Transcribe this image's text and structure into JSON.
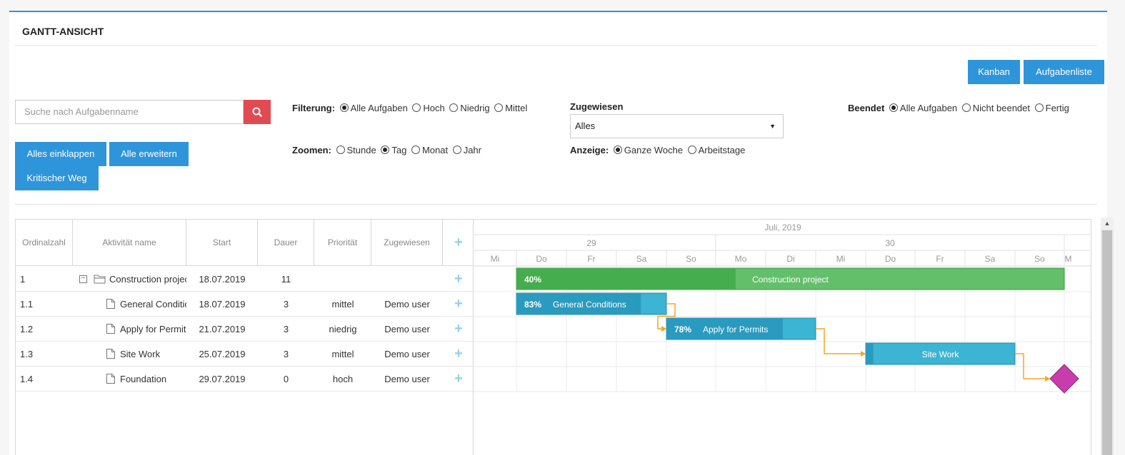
{
  "header": {
    "title": "GANTT-ANSICHT"
  },
  "view_buttons": {
    "kanban": "Kanban",
    "task_list": "Aufgabenliste"
  },
  "search": {
    "placeholder": "Suche nach Aufgabenname"
  },
  "actions": {
    "collapse_all": "Alles einklappen",
    "expand_all": "Alle erweitern",
    "critical_path": "Kritischer Weg"
  },
  "filtering": {
    "label": "Filterung:",
    "options": [
      "Alle Aufgaben",
      "Hoch",
      "Niedrig",
      "Mittel"
    ],
    "selected": "Alle Aufgaben"
  },
  "zoom": {
    "label": "Zoomen:",
    "options": [
      "Stunde",
      "Tag",
      "Monat",
      "Jahr"
    ],
    "selected": "Tag"
  },
  "assigned": {
    "label": "Zugewiesen",
    "value": "Alles"
  },
  "display": {
    "label": "Anzeige:",
    "options": [
      "Ganze Woche",
      "Arbeitstage"
    ],
    "selected": "Ganze Woche"
  },
  "finished": {
    "label": "Beendet",
    "options": [
      "Alle Aufgaben",
      "Nicht beendet",
      "Fertig"
    ],
    "selected": "Alle Aufgaben"
  },
  "grid": {
    "columns": [
      "Ordinalzahl",
      "Aktivität name",
      "Start",
      "Dauer",
      "Priorität",
      "Zugewiesen"
    ],
    "rows": [
      {
        "ordinal": "1",
        "name": "Construction project",
        "start": "18.07.2019",
        "duration": "11",
        "priority": "",
        "assigned": "",
        "type": "folder"
      },
      {
        "ordinal": "1.1",
        "name": "General Conditions",
        "start": "18.07.2019",
        "duration": "3",
        "priority": "mittel",
        "assigned": "Demo user",
        "type": "file"
      },
      {
        "ordinal": "1.2",
        "name": "Apply for Permits",
        "start": "21.07.2019",
        "duration": "3",
        "priority": "niedrig",
        "assigned": "Demo user",
        "type": "file"
      },
      {
        "ordinal": "1.3",
        "name": "Site Work",
        "start": "25.07.2019",
        "duration": "3",
        "priority": "mittel",
        "assigned": "Demo user",
        "type": "file"
      },
      {
        "ordinal": "1.4",
        "name": "Foundation",
        "start": "29.07.2019",
        "duration": "0",
        "priority": "hoch",
        "assigned": "Demo user",
        "type": "file"
      }
    ]
  },
  "timeline": {
    "month": "Juli, 2019",
    "weeks": [
      "29",
      "30"
    ],
    "days": [
      "Mi",
      "Do",
      "Fr",
      "Sa",
      "So",
      "Mo",
      "Di",
      "Mi",
      "Do",
      "Fr",
      "Sa",
      "So",
      "M"
    ]
  },
  "bars": [
    {
      "name": "Construction project",
      "progress_label": "40%",
      "progress": 0.4,
      "start_day": 1,
      "duration_days": 11,
      "color": "#63bf6a",
      "progress_color": "#45ad4e"
    },
    {
      "name": "General Conditions",
      "progress_label": "83%",
      "progress": 0.83,
      "start_day": 1,
      "duration_days": 3,
      "color": "#3cb4d3",
      "progress_color": "#2a9abf"
    },
    {
      "name": "Apply for Permits",
      "progress_label": "78%",
      "progress": 0.78,
      "start_day": 4,
      "duration_days": 3,
      "color": "#3cb4d3",
      "progress_color": "#2a9abf"
    },
    {
      "name": "Site Work",
      "progress_label": "",
      "progress": 0.05,
      "start_day": 8,
      "duration_days": 3,
      "color": "#3cb4d3",
      "progress_color": "#2a9abf"
    },
    {
      "name": "",
      "progress_label": "",
      "progress": 0,
      "start_day": 12,
      "duration_days": 0,
      "color": "#c93cae",
      "milestone": true
    }
  ],
  "colors": {
    "accent": "#2e95db",
    "search_button": "#e24a52",
    "link_arrow": "#f5a623"
  }
}
